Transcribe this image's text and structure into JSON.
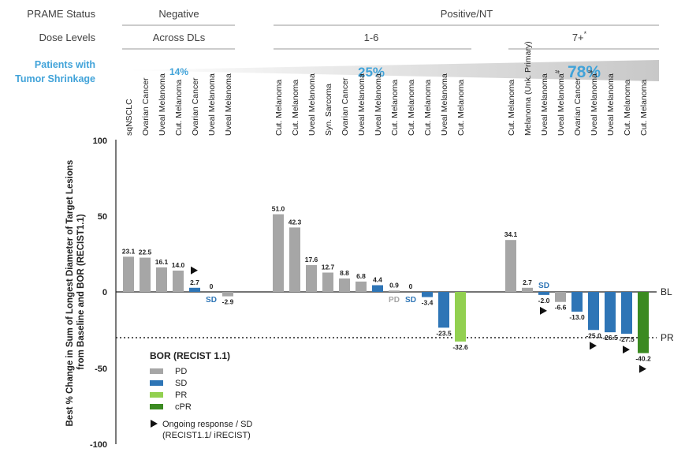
{
  "header": {
    "status_label": "PRAME Status",
    "negative_label": "Negative",
    "positive_label": "Positive/NT",
    "dose_label": "Dose Levels",
    "dose_groups": [
      "Across DLs",
      "1-6",
      "7+"
    ],
    "dose_star": "*",
    "shrinkage_label_1": "Patients with",
    "shrinkage_label_2": "Tumor Shrinkage",
    "shrinkage_values": [
      "14%",
      "25%",
      "78%"
    ]
  },
  "chart_data": {
    "type": "bar",
    "ylabel": "Best % Change in Sum of Longest Diameter of Target Lesions from Baseline and BOR (RECIST1.1)",
    "ylabel_line1": "Best % Change in Sum of Longest Diameter of Target Lesions",
    "ylabel_line2": "from Baseline and BOR (RECIST1.1)",
    "ylim": [
      -100,
      100
    ],
    "yticks": [
      "100",
      "50",
      "0",
      "-50",
      "-100"
    ],
    "reference_lines": [
      {
        "label": "BL",
        "value": 0
      },
      {
        "label": "PR",
        "value": -30
      }
    ],
    "colors": {
      "PD": "#a6a6a6",
      "SD": "#2e75b6",
      "PR": "#92d050",
      "cPR": "#3b8a21"
    },
    "legend": {
      "title": "BOR (RECIST 1.1)",
      "items": [
        {
          "key": "PD",
          "label": "PD"
        },
        {
          "key": "SD",
          "label": "SD"
        },
        {
          "key": "PR",
          "label": "PR"
        },
        {
          "key": "cPR",
          "label": "cPR"
        }
      ],
      "ongoing_label_1": "Ongoing response / SD",
      "ongoing_label_2": "(RECIST1.1/ iRECIST)"
    },
    "groups": [
      {
        "name": "Negative",
        "bars": [
          {
            "category": "sqNSCLC",
            "value": 23.1,
            "label": "23.1",
            "bor": "PD"
          },
          {
            "category": "Ovarian Cancer",
            "value": 22.5,
            "label": "22.5",
            "bor": "PD"
          },
          {
            "category": "Uveal Melanoma",
            "value": 16.1,
            "label": "16.1",
            "bor": "PD"
          },
          {
            "category": "Cut. Melanoma",
            "value": 14.0,
            "label": "14.0",
            "bor": "PD"
          },
          {
            "category": "Ovarian Cancer",
            "value": 2.7,
            "label": "2.7",
            "bor": "SD",
            "ongoing": true
          },
          {
            "category": "Uveal Melanoma",
            "value": 0,
            "label": "0",
            "bor": "SD",
            "tag": "SD"
          },
          {
            "category": "Uveal Melanoma",
            "value": -2.9,
            "label": "-2.9",
            "bor": "PD"
          }
        ]
      },
      {
        "name": "1-6",
        "bars": [
          {
            "category": "Cut. Melanoma",
            "value": 51.0,
            "label": "51.0",
            "bor": "PD"
          },
          {
            "category": "Cut. Melanoma",
            "value": 42.3,
            "label": "42.3",
            "bor": "PD"
          },
          {
            "category": "Uveal Melanoma",
            "value": 17.6,
            "label": "17.6",
            "bor": "PD"
          },
          {
            "category": "Syn. Sarcoma",
            "value": 12.7,
            "label": "12.7",
            "bor": "PD"
          },
          {
            "category": "Ovarian Cancer",
            "value": 8.8,
            "label": "8.8",
            "bor": "PD"
          },
          {
            "category": "Uveal Melanoma",
            "value": 6.8,
            "label": "6.8",
            "bor": "PD"
          },
          {
            "category": "Uveal Melanoma",
            "value": 4.4,
            "label": "4.4",
            "bor": "SD"
          },
          {
            "category": "Cut. Melanoma",
            "value": 0.9,
            "label": "0.9",
            "bor": "PD",
            "tag": "PD"
          },
          {
            "category": "Cut. Melanoma",
            "value": 0,
            "label": "0",
            "bor": "SD",
            "tag": "SD"
          },
          {
            "category": "Cut. Melanoma",
            "value": -3.4,
            "label": "-3.4",
            "bor": "SD"
          },
          {
            "category": "Uveal Melanoma",
            "value": -23.5,
            "label": "-23.5",
            "bor": "SD"
          },
          {
            "category": "Cut. Melanoma",
            "value": -32.6,
            "label": "-32.6",
            "bor": "PR"
          }
        ]
      },
      {
        "name": "7+",
        "bars": [
          {
            "category": "Cut. Melanoma",
            "value": 34.1,
            "label": "34.1",
            "bor": "PD"
          },
          {
            "category": "Melanoma (Unk. Primary)",
            "value": 2.7,
            "label": "2.7",
            "bor": "PD"
          },
          {
            "category": "Uveal Melanoma",
            "value": -2.0,
            "label": "-2.0",
            "bor": "SD",
            "tag": "SD",
            "ongoing": true
          },
          {
            "category": "Uveal Melanoma",
            "mark": "#",
            "value": -6.6,
            "label": "-6.6",
            "bor": "PD"
          },
          {
            "category": "Ovarian Cancer",
            "value": -13.0,
            "label": "-13.0",
            "bor": "SD"
          },
          {
            "category": "Uveal Melanoma",
            "mark": "#",
            "value": -25.0,
            "label": "-25.0",
            "bor": "SD",
            "ongoing": true
          },
          {
            "category": "Uveal Melanoma",
            "value": -26.5,
            "label": "-26.5",
            "bor": "SD"
          },
          {
            "category": "Cut. Melanoma",
            "value": -27.5,
            "label": "-27.5",
            "bor": "SD",
            "ongoing": true
          },
          {
            "category": "Cut. Melanoma",
            "value": -40.2,
            "label": "-40.2",
            "bor": "cPR",
            "ongoing": true
          }
        ]
      }
    ]
  }
}
